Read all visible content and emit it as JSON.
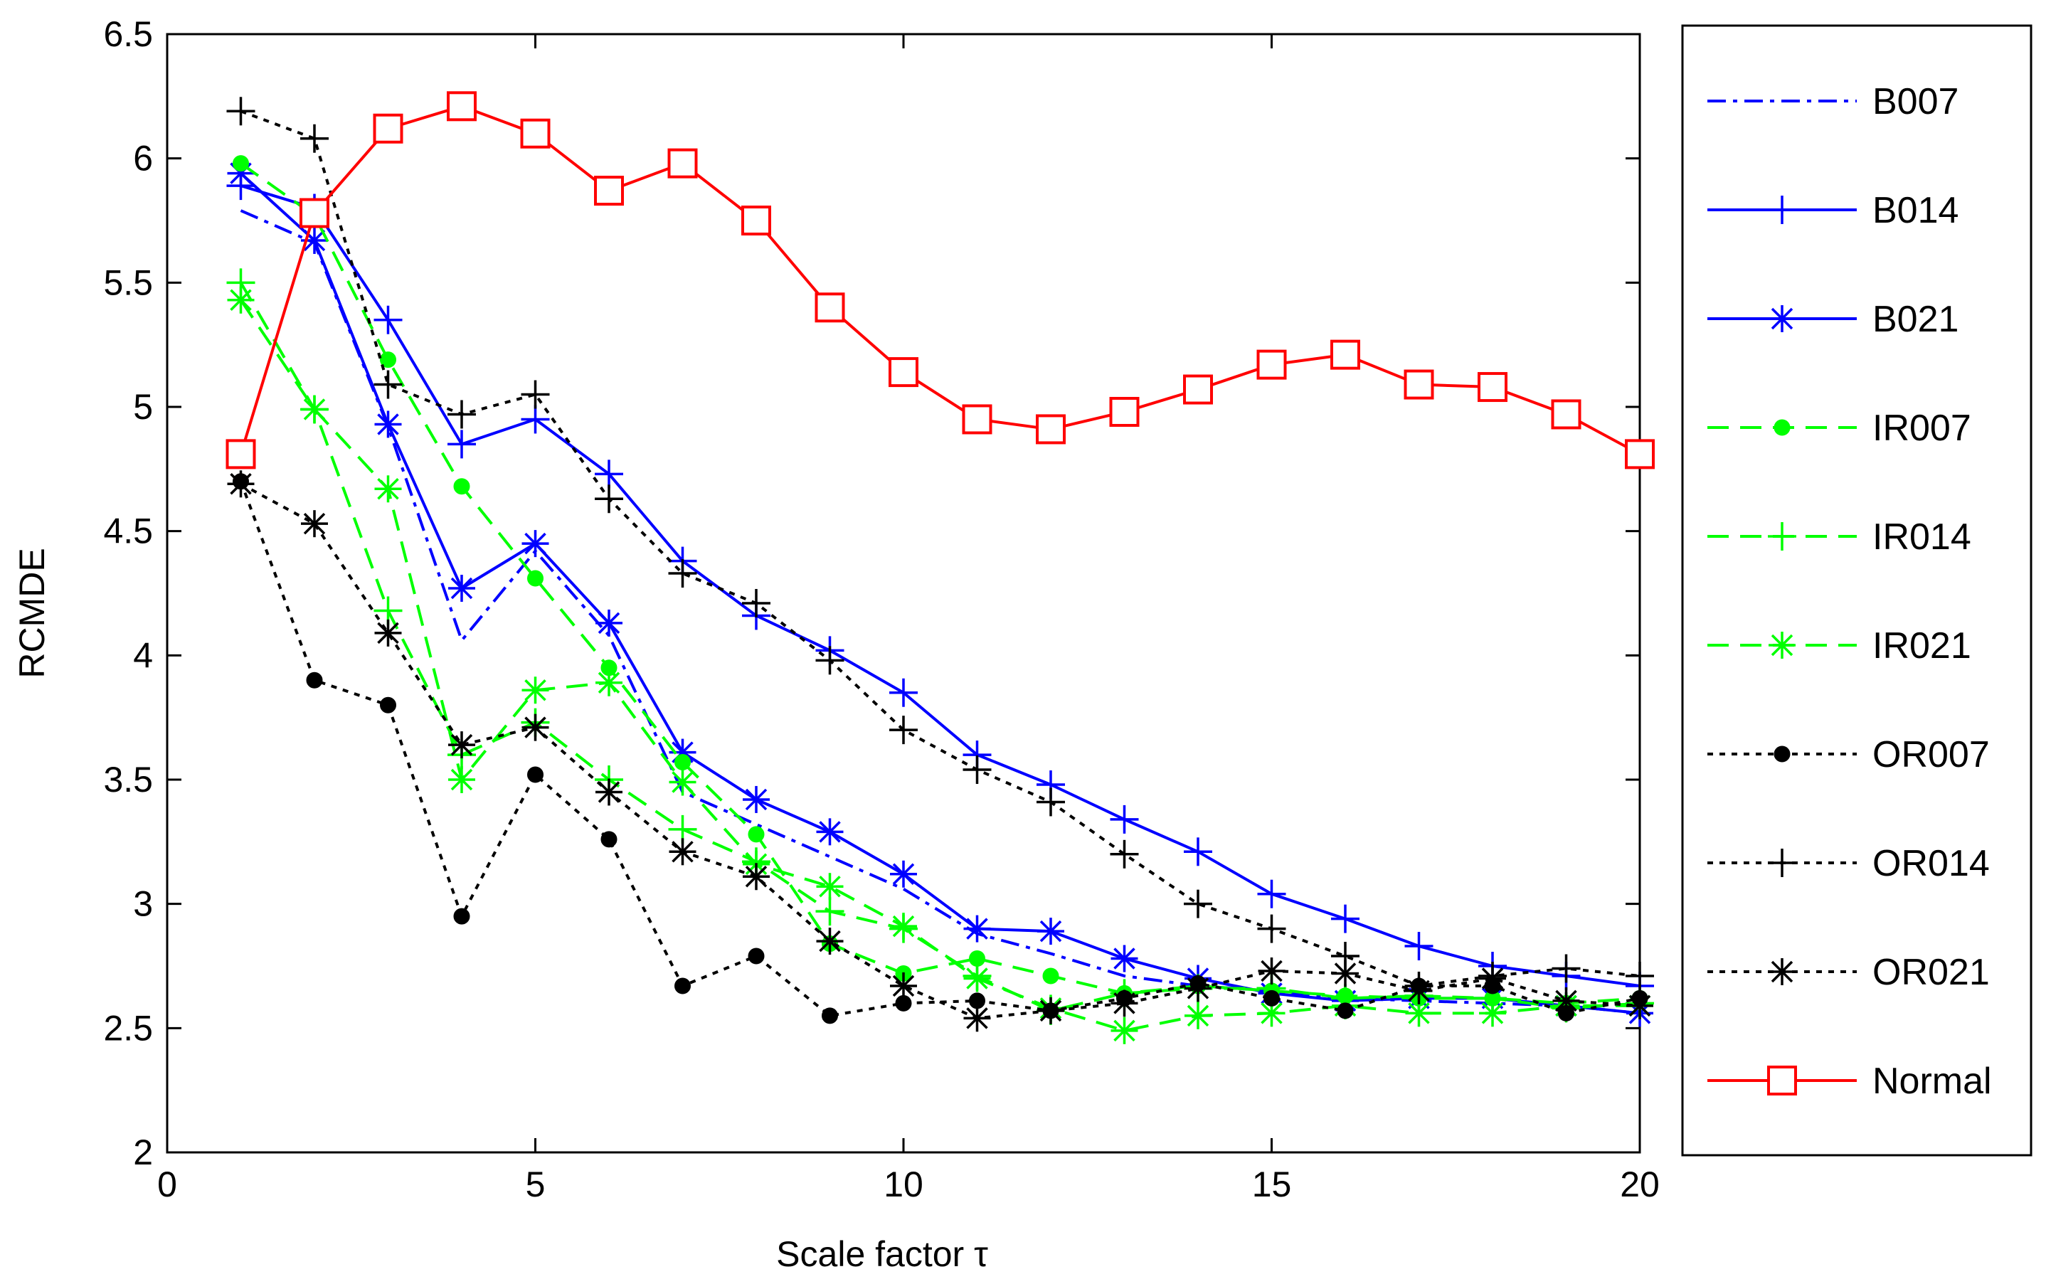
{
  "chart_data": {
    "type": "line",
    "title": "",
    "xlabel": "Scale factor τ",
    "ylabel": "RCMDE",
    "xlim": [
      0,
      20
    ],
    "ylim": [
      2,
      6.5
    ],
    "xticks": [
      0,
      5,
      10,
      15,
      20
    ],
    "xtick_labels": [
      "0",
      "5",
      "10",
      "15",
      "20"
    ],
    "yticks": [
      2,
      2.5,
      3,
      3.5,
      4,
      4.5,
      5,
      5.5,
      6,
      6.5
    ],
    "ytick_labels": [
      "2",
      "2.5",
      "3",
      "3.5",
      "4",
      "4.5",
      "5",
      "5.5",
      "6",
      "6.5"
    ],
    "grid": false,
    "legend_position": "outside-right",
    "x": [
      1,
      2,
      3,
      4,
      5,
      6,
      7,
      8,
      9,
      10,
      11,
      12,
      13,
      14,
      15,
      16,
      17,
      18,
      19,
      20
    ],
    "series": [
      {
        "name": "B007",
        "color": "#0000ff",
        "dash": "dashdot",
        "marker": "none",
        "values": [
          5.79,
          5.66,
          4.92,
          4.06,
          4.42,
          4.08,
          3.45,
          3.32,
          3.19,
          3.06,
          2.88,
          2.8,
          2.71,
          2.67,
          2.65,
          2.62,
          2.61,
          2.6,
          2.59,
          2.56
        ]
      },
      {
        "name": "B014",
        "color": "#0000ff",
        "dash": "solid",
        "marker": "plus",
        "values": [
          5.89,
          5.8,
          5.35,
          4.85,
          4.95,
          4.73,
          4.38,
          4.16,
          4.02,
          3.85,
          3.6,
          3.48,
          3.34,
          3.21,
          3.04,
          2.94,
          2.83,
          2.75,
          2.71,
          2.67
        ]
      },
      {
        "name": "B021",
        "color": "#0000ff",
        "dash": "solid",
        "marker": "asterisk",
        "values": [
          5.94,
          5.67,
          4.93,
          4.27,
          4.45,
          4.13,
          3.61,
          3.42,
          3.29,
          3.12,
          2.9,
          2.89,
          2.78,
          2.7,
          2.64,
          2.61,
          2.62,
          2.62,
          2.59,
          2.56
        ]
      },
      {
        "name": "IR007",
        "color": "#00ff00",
        "dash": "dashed",
        "marker": "dot",
        "values": [
          5.98,
          5.77,
          5.19,
          4.68,
          4.31,
          3.95,
          3.57,
          3.28,
          2.84,
          2.72,
          2.78,
          2.71,
          2.64,
          2.67,
          2.65,
          2.63,
          2.62,
          2.62,
          2.6,
          2.62
        ]
      },
      {
        "name": "IR014",
        "color": "#00ff00",
        "dash": "dashed",
        "marker": "plus",
        "values": [
          5.5,
          4.99,
          4.18,
          3.6,
          3.73,
          3.5,
          3.3,
          3.17,
          2.97,
          2.9,
          2.71,
          2.57,
          2.64,
          2.66,
          2.66,
          2.62,
          2.63,
          2.62,
          2.58,
          2.6
        ]
      },
      {
        "name": "IR021",
        "color": "#00ff00",
        "dash": "dashed",
        "marker": "asterisk",
        "values": [
          5.43,
          4.99,
          4.67,
          3.5,
          3.86,
          3.89,
          3.49,
          3.16,
          3.07,
          2.91,
          2.7,
          2.58,
          2.49,
          2.55,
          2.56,
          2.59,
          2.56,
          2.56,
          2.59,
          2.59
        ]
      },
      {
        "name": "OR007",
        "color": "#000000",
        "dash": "dotted",
        "marker": "dot",
        "values": [
          4.7,
          3.9,
          3.8,
          2.95,
          3.52,
          3.26,
          2.67,
          2.79,
          2.55,
          2.6,
          2.61,
          2.57,
          2.62,
          2.68,
          2.62,
          2.57,
          2.67,
          2.67,
          2.56,
          2.62
        ]
      },
      {
        "name": "OR014",
        "color": "#000000",
        "dash": "dotted",
        "marker": "plus",
        "values": [
          6.19,
          6.08,
          5.09,
          4.97,
          5.05,
          4.63,
          4.33,
          4.21,
          3.98,
          3.7,
          3.54,
          3.41,
          3.2,
          3.0,
          2.9,
          2.79,
          2.67,
          2.71,
          2.74,
          2.71
        ]
      },
      {
        "name": "OR021",
        "color": "#000000",
        "dash": "dotted",
        "marker": "asterisk",
        "values": [
          4.69,
          4.53,
          4.09,
          3.64,
          3.71,
          3.45,
          3.21,
          3.11,
          2.85,
          2.67,
          2.54,
          2.57,
          2.6,
          2.66,
          2.73,
          2.72,
          2.65,
          2.7,
          2.61,
          2.59
        ]
      },
      {
        "name": "Normal",
        "color": "#ff0000",
        "dash": "solid",
        "marker": "square",
        "values": [
          4.81,
          5.78,
          6.12,
          6.21,
          6.1,
          5.87,
          5.98,
          5.75,
          5.4,
          5.14,
          4.95,
          4.91,
          4.98,
          5.07,
          5.17,
          5.21,
          5.09,
          5.08,
          4.97,
          4.81
        ]
      }
    ]
  }
}
